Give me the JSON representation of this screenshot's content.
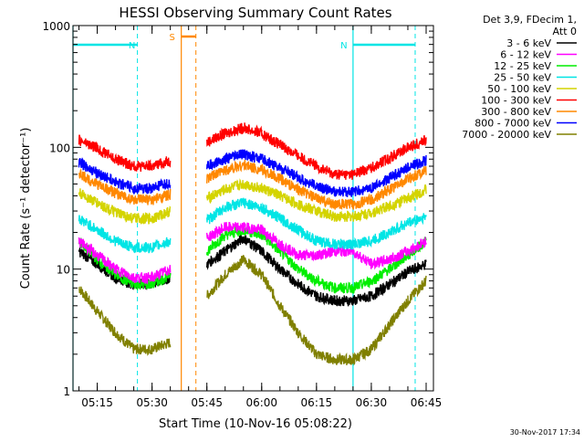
{
  "chart_data": {
    "type": "line",
    "title": "HESSI Observing Summary Count Rates",
    "xlabel": "Start Time (10-Nov-16 05:08:22)",
    "ylabel": "Count Rate (s⁻¹ detector⁻¹)",
    "y_scale": "log",
    "ylim": [
      1,
      1000
    ],
    "xlim": [
      "05:08:22",
      "06:47:00"
    ],
    "x_ticks": [
      "05:15",
      "05:30",
      "05:45",
      "06:00",
      "06:15",
      "06:30",
      "06:45"
    ],
    "y_ticks": [
      "1",
      "10",
      "100",
      "1000"
    ],
    "grid": false,
    "legend_header": [
      "Det 3,9, FDecim 1,",
      "Att 0"
    ],
    "legend_position": "right",
    "footer_date": "30-Nov-2017 17:34",
    "annotations": [
      {
        "label": "N",
        "meaning": "night",
        "from": "05:08:22",
        "to": "05:26:00"
      },
      {
        "label": "N",
        "meaning": "night",
        "from": "06:25:00",
        "to": "06:42:00"
      },
      {
        "label": "S",
        "meaning": "SAA",
        "from": "05:38:00",
        "to": "05:42:00"
      }
    ],
    "x": [
      "05:10",
      "05:15",
      "05:20",
      "05:25",
      "05:30",
      "05:35",
      "05:40",
      "05:45",
      "05:50",
      "05:55",
      "06:00",
      "06:05",
      "06:10",
      "06:15",
      "06:20",
      "06:25",
      "06:30",
      "06:35",
      "06:40",
      "06:45"
    ],
    "series": [
      {
        "name": "3 - 6 keV",
        "color": "#000000",
        "values": [
          14,
          11,
          8.5,
          7.5,
          7.5,
          8.5,
          null,
          11,
          14,
          18,
          14,
          10,
          7.5,
          6,
          5.5,
          5.5,
          6,
          7.5,
          9.5,
          11
        ]
      },
      {
        "name": "6 - 12 keV",
        "color": "#ff00ff",
        "values": [
          17,
          13,
          10,
          8.5,
          8.5,
          10,
          null,
          18,
          22,
          22,
          21,
          16,
          13,
          13,
          14,
          14,
          11,
          12,
          14,
          17
        ]
      },
      {
        "name": "12 - 25 keV",
        "color": "#00ee00",
        "values": [
          17,
          12,
          9,
          7.5,
          7.5,
          9,
          null,
          14,
          19,
          21,
          19,
          14,
          10,
          8,
          7,
          7,
          8,
          10,
          13,
          17
        ]
      },
      {
        "name": "25 - 50 keV",
        "color": "#00e5e5",
        "values": [
          26,
          21,
          17,
          15,
          15,
          17,
          null,
          25,
          32,
          35,
          32,
          26,
          21,
          17,
          16,
          16,
          17,
          20,
          24,
          27
        ]
      },
      {
        "name": "50 - 100 keV",
        "color": "#d4d400",
        "values": [
          42,
          35,
          29,
          26,
          26,
          30,
          null,
          38,
          45,
          50,
          46,
          40,
          34,
          30,
          27,
          27,
          29,
          33,
          38,
          45
        ]
      },
      {
        "name": "100 - 300 keV",
        "color": "#ff0000",
        "values": [
          115,
          98,
          80,
          70,
          70,
          78,
          null,
          110,
          130,
          145,
          130,
          105,
          85,
          70,
          60,
          60,
          68,
          82,
          100,
          115
        ]
      },
      {
        "name": "300 - 800 keV",
        "color": "#ff8800",
        "values": [
          60,
          50,
          42,
          37,
          37,
          41,
          null,
          55,
          65,
          72,
          65,
          55,
          45,
          38,
          34,
          34,
          37,
          45,
          55,
          65
        ]
      },
      {
        "name": "800 - 7000 keV",
        "color": "#0000ff",
        "values": [
          75,
          62,
          52,
          46,
          46,
          51,
          null,
          70,
          80,
          88,
          80,
          68,
          56,
          48,
          43,
          43,
          46,
          56,
          68,
          78
        ]
      },
      {
        "name": "7000 - 20000 keV",
        "color": "#808000",
        "values": [
          7,
          4.5,
          3,
          2.2,
          2.2,
          2.5,
          null,
          6,
          9,
          12,
          9,
          5,
          3,
          2,
          1.8,
          1.8,
          2.2,
          3.5,
          5.5,
          8
        ]
      }
    ]
  }
}
